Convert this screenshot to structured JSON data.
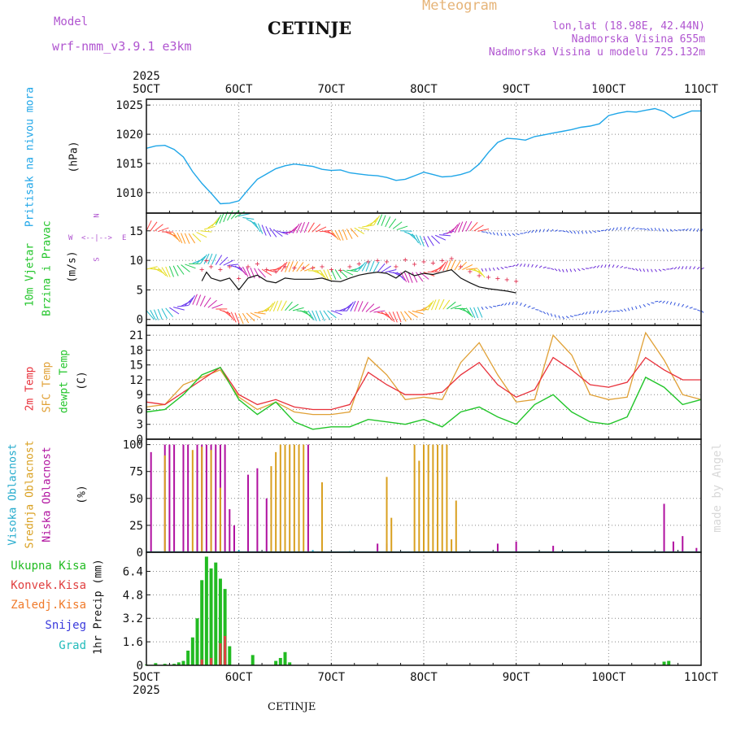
{
  "header": {
    "model_label": "Model",
    "model_name": "wrf-nmm_v3.9.1 e3km",
    "station": "CETINJE",
    "product": "Meteogram",
    "lonlat": "lon,lat (18.98E, 42.44N)",
    "elev_station": "Nadmorska Visina 655m",
    "elev_model": "Nadmorska Visina u modelu 725.132m",
    "footer_station": "CETINJE",
    "credit": "made by Angel"
  },
  "colors": {
    "pressure": "#1fa6e8",
    "temp": "#e8303a",
    "sfc": "#e0a035",
    "dew": "#22c52a",
    "high": "#22aacc",
    "mid": "#d9a020",
    "low": "#b0109f",
    "total": "#22bb22",
    "conv": "#e04040",
    "frozen": "#f07a2a",
    "snow": "#3a3adc",
    "grad": "#22bbbb",
    "title_purple": "#b055d0",
    "meteogram": "#e6b478"
  },
  "chart_data": [
    {
      "id": "pressure",
      "type": "line",
      "ylabel_lines": [
        "Pritisak na nivou mora",
        "(hPa)"
      ],
      "yticks": [
        1010,
        1015,
        1020,
        1025
      ],
      "ylim": [
        1006.5,
        1026
      ],
      "x_days": [
        "5OCT",
        "6OCT",
        "7OCT",
        "8OCT",
        "9OCT",
        "10OCT",
        "11OCT"
      ],
      "year": "2025",
      "series": [
        {
          "name": "MSLP",
          "x": [
            5.0,
            5.1,
            5.2,
            5.3,
            5.4,
            5.5,
            5.6,
            5.7,
            5.8,
            5.9,
            6.0,
            6.1,
            6.2,
            6.3,
            6.4,
            6.5,
            6.6,
            6.7,
            6.8,
            6.9,
            7.0,
            7.1,
            7.2,
            7.3,
            7.4,
            7.5,
            7.6,
            7.7,
            7.8,
            7.9,
            8.0,
            8.1,
            8.2,
            8.3,
            8.4,
            8.5,
            8.6,
            8.7,
            8.8,
            8.9,
            9.0,
            9.1,
            9.2,
            9.3,
            9.4,
            9.5,
            9.6,
            9.7,
            9.8,
            9.9,
            10.0,
            10.1,
            10.2,
            10.3,
            10.4,
            10.5,
            10.6,
            10.7,
            10.8,
            10.9,
            11.0
          ],
          "values": [
            1017.6,
            1018.0,
            1018.1,
            1017.4,
            1016.1,
            1013.6,
            1011.6,
            1009.9,
            1008.1,
            1008.2,
            1008.6,
            1010.5,
            1012.3,
            1013.2,
            1014.1,
            1014.6,
            1014.9,
            1014.7,
            1014.5,
            1014.0,
            1013.8,
            1013.9,
            1013.4,
            1013.2,
            1013.0,
            1012.9,
            1012.6,
            1012.1,
            1012.3,
            1012.9,
            1013.5,
            1013.1,
            1012.7,
            1012.8,
            1013.1,
            1013.6,
            1014.9,
            1016.9,
            1018.6,
            1019.3,
            1019.2,
            1019.0,
            1019.6,
            1019.9,
            1020.2,
            1020.5,
            1020.8,
            1021.2,
            1021.4,
            1021.8,
            1023.2,
            1023.6,
            1023.9,
            1023.8,
            1024.1,
            1024.4,
            1023.9,
            1022.8,
            1023.4,
            1024.0,
            1024.0
          ]
        }
      ]
    },
    {
      "id": "wind",
      "type": "line",
      "ylabel_lines": [
        "10m Vjetar",
        "Brzina i Pravac",
        "(m/s)"
      ],
      "compass": {
        "n": "N",
        "e": "E",
        "s": "S",
        "w": "W"
      },
      "yticks": [
        0,
        5,
        10,
        15
      ],
      "ylim": [
        -1,
        18
      ],
      "series": [
        {
          "name": "wind-speed",
          "x": [
            5.6,
            5.65,
            5.7,
            5.8,
            5.9,
            6.0,
            6.1,
            6.2,
            6.3,
            6.4,
            6.5,
            6.6,
            6.7,
            6.8,
            6.9,
            7.0,
            7.1,
            7.2,
            7.3,
            7.4,
            7.5,
            7.6,
            7.7,
            7.8,
            7.9,
            8.0,
            8.1,
            8.2,
            8.3,
            8.4,
            8.5,
            8.6,
            8.7,
            8.8,
            8.9,
            9.0
          ],
          "values": [
            6.5,
            8.0,
            7.0,
            6.5,
            7.0,
            5.0,
            7.0,
            7.5,
            6.5,
            6.2,
            7.0,
            6.8,
            6.8,
            6.8,
            7.0,
            6.5,
            6.4,
            7.0,
            7.5,
            7.8,
            8.0,
            7.8,
            7.0,
            8.2,
            7.4,
            7.8,
            7.6,
            8.0,
            8.4,
            7.0,
            6.2,
            5.5,
            5.2,
            5.0,
            4.8,
            4.5
          ]
        },
        {
          "name": "gust-band",
          "x": [
            5.0,
            5.5,
            6.0,
            6.5,
            7.0,
            7.5,
            8.0,
            8.5,
            9.0,
            9.5,
            10.0,
            10.5,
            11.0
          ],
          "values": [
            15.0,
            14.5,
            17.5,
            14.5,
            15.0,
            16.0,
            14.0,
            15.0,
            14.5,
            15.0,
            15.0,
            15.5,
            14.8
          ]
        },
        {
          "name": "mid-band",
          "x": [
            5.0,
            5.5,
            6.0,
            6.5,
            7.0,
            7.5,
            8.0,
            8.5,
            9.0,
            9.5,
            10.0,
            10.5,
            11.0
          ],
          "values": [
            8.5,
            9.5,
            9.0,
            8.0,
            8.5,
            8.0,
            8.0,
            8.5,
            9.0,
            8.5,
            8.8,
            8.5,
            8.5
          ]
        },
        {
          "name": "low-band",
          "x": [
            5.0,
            5.5,
            6.0,
            6.5,
            7.0,
            7.5,
            8.0,
            8.5,
            9.0,
            9.5,
            10.0,
            10.5,
            11.0
          ],
          "values": [
            1.5,
            2.5,
            1.0,
            1.5,
            1.5,
            1.2,
            1.5,
            2.0,
            2.5,
            0.5,
            1.2,
            3.0,
            1.5
          ]
        }
      ]
    },
    {
      "id": "temperature",
      "type": "line",
      "ylabel_lines": [
        "2m Temp",
        "SFC Temp",
        "dewpt Temp",
        "(C)"
      ],
      "yticks": [
        0,
        3,
        6,
        9,
        12,
        15,
        18,
        21
      ],
      "ylim": [
        0,
        23
      ],
      "series": [
        {
          "name": "2m Temp",
          "x": [
            5.0,
            5.2,
            5.4,
            5.6,
            5.8,
            6.0,
            6.2,
            6.4,
            6.6,
            6.8,
            7.0,
            7.2,
            7.4,
            7.6,
            7.8,
            8.0,
            8.2,
            8.4,
            8.6,
            8.8,
            9.0,
            9.2,
            9.4,
            9.6,
            9.8,
            10.0,
            10.2,
            10.4,
            10.6,
            10.8,
            11.0
          ],
          "values": [
            7.5,
            7.0,
            9.5,
            12.0,
            14.5,
            9.0,
            7.0,
            8.0,
            6.5,
            6.0,
            6.0,
            7.0,
            13.5,
            11.0,
            9.0,
            9.0,
            9.5,
            13.0,
            15.5,
            11.0,
            8.5,
            10.0,
            16.5,
            14.0,
            11.0,
            10.5,
            11.5,
            16.5,
            14.0,
            12.0,
            12.0
          ]
        },
        {
          "name": "SFC Temp",
          "x": [
            5.0,
            5.2,
            5.4,
            5.6,
            5.8,
            6.0,
            6.2,
            6.4,
            6.6,
            6.8,
            7.0,
            7.2,
            7.4,
            7.6,
            7.8,
            8.0,
            8.2,
            8.4,
            8.6,
            8.8,
            9.0,
            9.2,
            9.4,
            9.6,
            9.8,
            10.0,
            10.2,
            10.4,
            10.6,
            10.8,
            11.0
          ],
          "values": [
            6.5,
            7.0,
            11.0,
            12.5,
            14.0,
            8.5,
            6.0,
            7.5,
            5.5,
            5.0,
            5.0,
            5.5,
            16.5,
            13.0,
            8.0,
            8.5,
            8.0,
            15.5,
            19.5,
            13.0,
            7.5,
            8.0,
            21.0,
            17.0,
            9.0,
            8.0,
            8.5,
            21.5,
            16.0,
            9.0,
            8.0
          ]
        },
        {
          "name": "dewpt Temp",
          "x": [
            5.0,
            5.2,
            5.4,
            5.6,
            5.8,
            6.0,
            6.2,
            6.4,
            6.6,
            6.8,
            7.0,
            7.2,
            7.4,
            7.6,
            7.8,
            8.0,
            8.2,
            8.4,
            8.6,
            8.8,
            9.0,
            9.2,
            9.4,
            9.6,
            9.8,
            10.0,
            10.2,
            10.4,
            10.6,
            10.8,
            11.0
          ],
          "values": [
            5.5,
            6.0,
            9.0,
            13.0,
            14.5,
            8.0,
            5.0,
            7.5,
            3.5,
            2.0,
            2.5,
            2.5,
            4.0,
            3.5,
            3.0,
            4.0,
            2.5,
            5.5,
            6.5,
            4.5,
            3.0,
            7.0,
            9.0,
            5.5,
            3.5,
            3.0,
            4.5,
            12.5,
            10.5,
            7.0,
            8.0
          ]
        }
      ]
    },
    {
      "id": "clouds",
      "type": "bar",
      "ylabel_lines": [
        "Visoka Oblacnost",
        "Srednja Oblacnost",
        "Niska Oblacnost",
        "(%)"
      ],
      "yticks": [
        0,
        25,
        50,
        75,
        100
      ],
      "ylim": [
        0,
        105
      ],
      "series": [
        {
          "name": "Niska",
          "x": [
            5.05,
            5.2,
            5.25,
            5.3,
            5.4,
            5.45,
            5.55,
            5.6,
            5.65,
            5.7,
            5.75,
            5.8,
            5.85,
            5.9,
            5.95,
            6.1,
            6.2,
            6.3,
            6.75,
            7.5,
            7.6,
            8.8,
            9.0,
            9.4,
            10.6,
            10.7,
            10.8,
            10.95
          ],
          "values": [
            93,
            100,
            100,
            100,
            100,
            100,
            100,
            100,
            100,
            100,
            100,
            100,
            100,
            40,
            25,
            72,
            78,
            50,
            100,
            8,
            8,
            8,
            10,
            6,
            45,
            10,
            15,
            4
          ]
        },
        {
          "name": "Srednja",
          "x": [
            5.2,
            5.5,
            5.6,
            5.7,
            5.8,
            6.35,
            6.4,
            6.45,
            6.5,
            6.55,
            6.6,
            6.65,
            6.7,
            6.9,
            7.9,
            7.95,
            8.0,
            8.05,
            8.1,
            8.15,
            8.2,
            8.25,
            7.6,
            7.65,
            8.3,
            8.35
          ],
          "values": [
            90,
            95,
            98,
            95,
            60,
            80,
            93,
            100,
            100,
            100,
            100,
            100,
            100,
            65,
            100,
            85,
            100,
            100,
            100,
            100,
            100,
            100,
            70,
            32,
            12,
            48
          ]
        },
        {
          "name": "Visoka",
          "x": [
            6.0,
            6.8,
            7.2,
            8.0,
            9.5,
            10.0
          ],
          "values": [
            2,
            2,
            1,
            1,
            1,
            1
          ]
        }
      ]
    },
    {
      "id": "precip",
      "type": "bar",
      "ylabel_lines": [
        "1hr Precip (mm)"
      ],
      "yticks": [
        0,
        1.6,
        3.2,
        4.8,
        6.4
      ],
      "ylabel_ticks": [
        "0",
        "1.6",
        "3.2",
        "4.8",
        "6.4"
      ],
      "ylim": [
        0,
        7.7
      ],
      "legend": [
        "Ukupna Kisa",
        "Konvek.Kisa",
        "Zaledj.Kisa",
        "Snijeg",
        "Grad"
      ],
      "series": [
        {
          "name": "Ukupna Kisa",
          "x": [
            5.0,
            5.1,
            5.2,
            5.3,
            5.35,
            5.4,
            5.45,
            5.5,
            5.55,
            5.6,
            5.65,
            5.7,
            5.75,
            5.8,
            5.85,
            5.9,
            6.15,
            6.4,
            6.45,
            6.5,
            6.55,
            10.6,
            10.65
          ],
          "values": [
            0.05,
            0.15,
            0.1,
            0.1,
            0.2,
            0.3,
            1.0,
            1.9,
            3.2,
            5.8,
            7.4,
            6.6,
            7.0,
            5.9,
            5.2,
            1.3,
            0.7,
            0.3,
            0.5,
            0.9,
            0.2,
            0.25,
            0.3
          ]
        },
        {
          "name": "Konvek.Kisa",
          "x": [
            5.6,
            5.7,
            5.8,
            5.85
          ],
          "values": [
            0.4,
            0.5,
            1.5,
            2.0
          ]
        }
      ]
    }
  ]
}
